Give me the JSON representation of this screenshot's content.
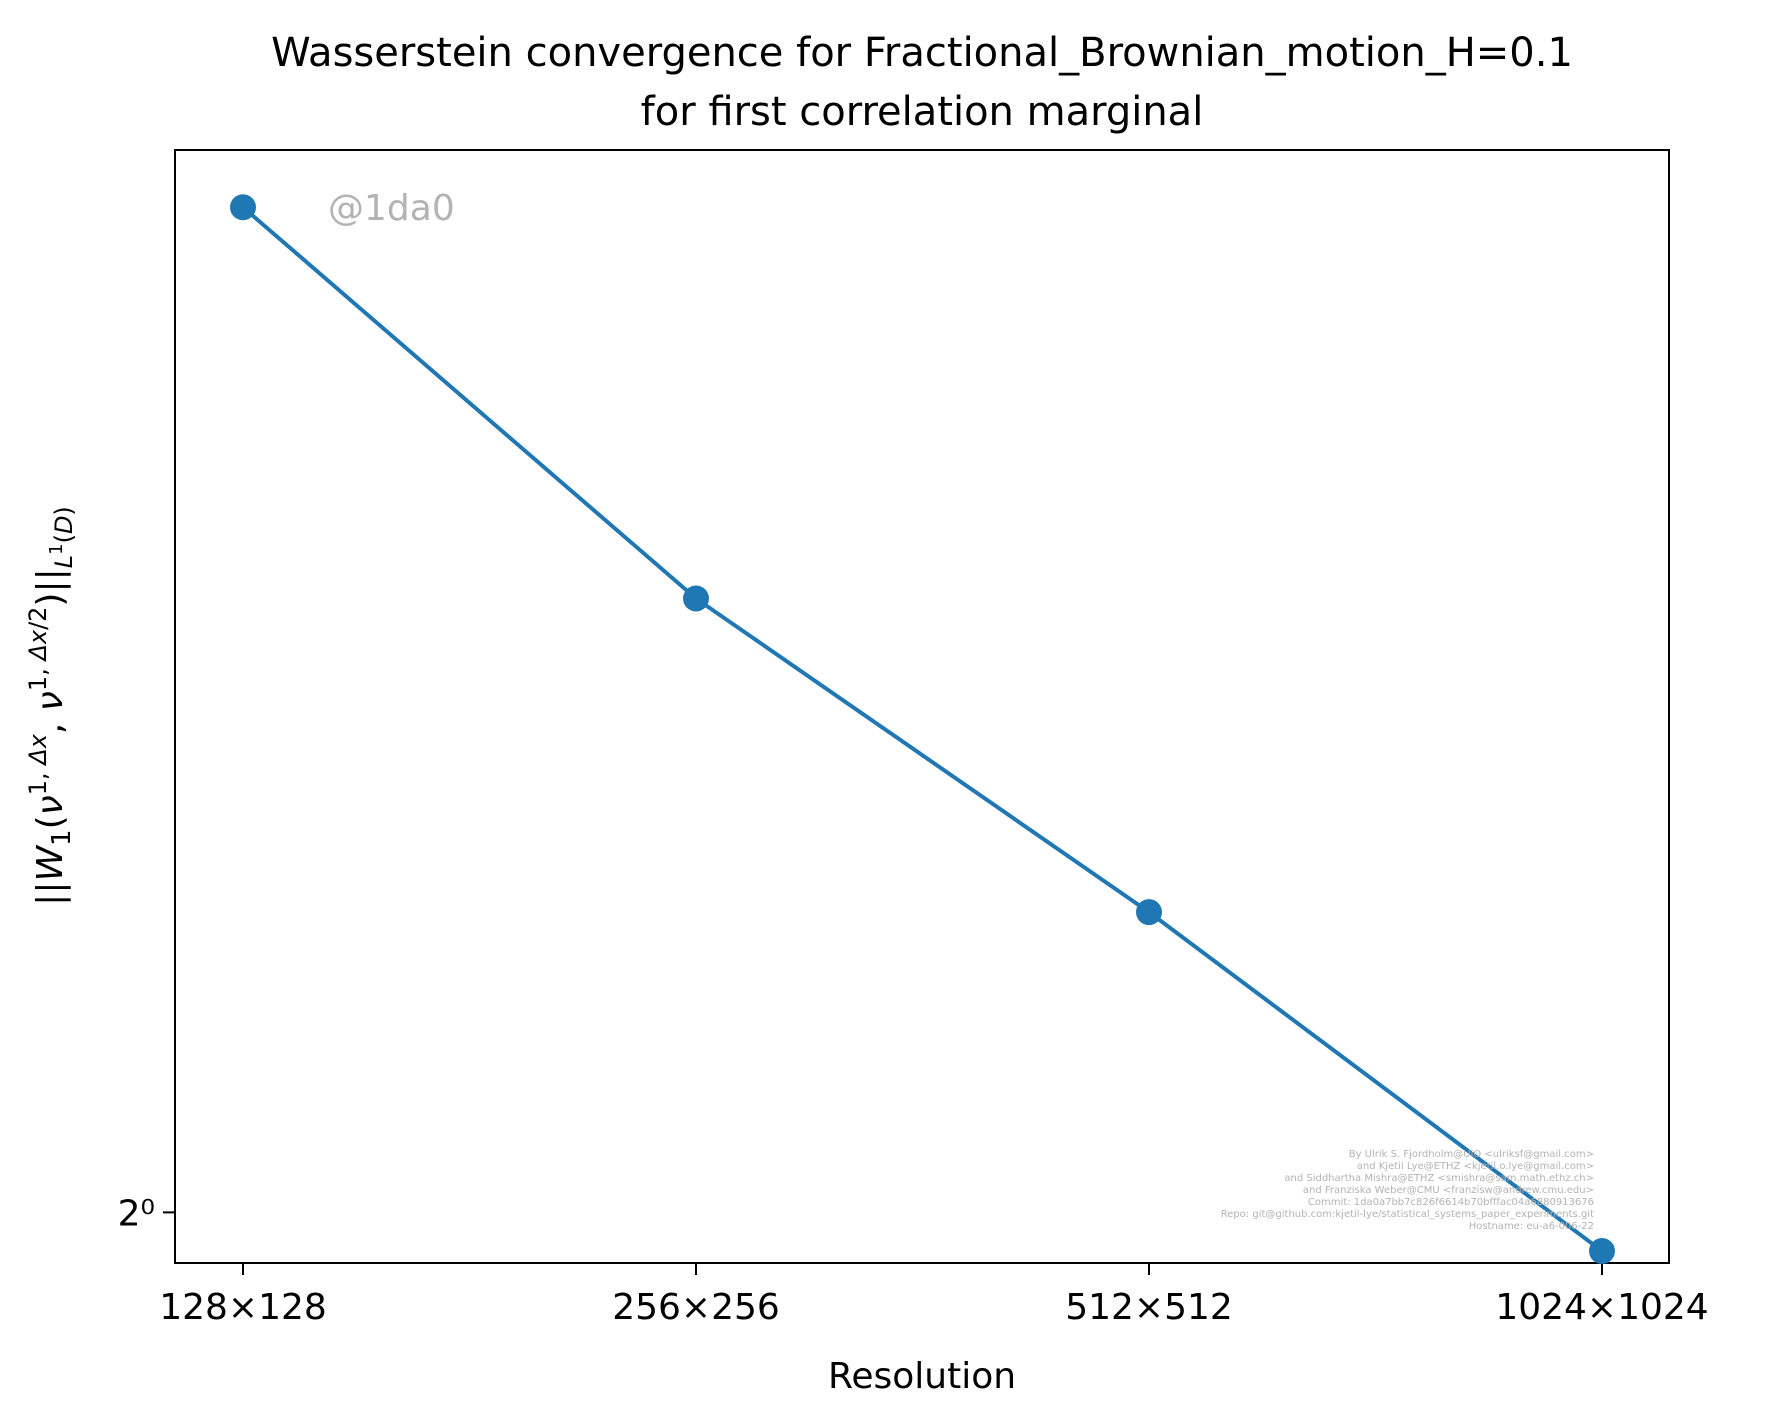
{
  "chart_data": {
    "type": "line",
    "title_lines": [
      "Wasserstein convergence for Fractional_Brownian_motion_H=0.1",
      "for first correlation marginal"
    ],
    "xlabel": "Resolution",
    "ylabel": "||W_1(ν^{1,Δx}, ν^{1,Δx/2})||_{L^1(D)}",
    "y_scale": "log2",
    "ylim": [
      0.935,
      4.1
    ],
    "categories": [
      "128×128",
      "256×256",
      "512×512",
      "1024×1024"
    ],
    "y_ticks": [
      {
        "value": 1,
        "label": "2⁰"
      }
    ],
    "series": [
      {
        "color": "#1f77b4",
        "marker": "circle",
        "values": [
          3.8,
          2.26,
          1.49,
          0.95
        ]
      }
    ],
    "grid": false,
    "legend": "none",
    "watermark": "@1da0",
    "credits": [
      "By Ulrik S. Fjordholm@UiO <ulriksf@gmail.com>",
      "and Kjetil Lye@ETHZ <kjetil.o.lye@gmail.com>",
      "and Siddhartha Mishra@ETHZ <smishra@sam.math.ethz.ch>",
      "and Franziska Weber@CMU <franzisw@andrew.cmu.edu>",
      "Commit: 1da0a7bb7c826f6614b70bfffac04a6880913676",
      "Repo: git@github.com:kjetil-lye/statistical_systems_paper_experiments.git",
      "Hostname: eu-a6-006-22"
    ]
  }
}
